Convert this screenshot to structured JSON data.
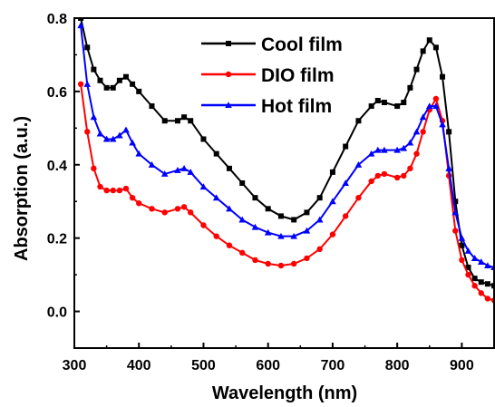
{
  "chart_data": {
    "type": "line",
    "title": "",
    "xlabel": "Wavelength (nm)",
    "ylabel": "Absorption (a.u.)",
    "xlim": [
      300,
      950
    ],
    "ylim": [
      -0.1,
      0.8
    ],
    "x_ticks": [
      300,
      400,
      500,
      600,
      700,
      800,
      900
    ],
    "y_ticks": [
      0.0,
      0.2,
      0.4,
      0.6,
      0.8
    ],
    "x_tick_labels": [
      "300",
      "400",
      "500",
      "600",
      "700",
      "800",
      "900"
    ],
    "y_tick_labels": [
      "0.0",
      "0.2",
      "0.4",
      "0.6",
      "0.8"
    ],
    "grid": false,
    "legend_position": "top-center",
    "series": [
      {
        "name": "Cool film",
        "color": "#000000",
        "marker": "square",
        "points": [
          [
            310,
            0.8
          ],
          [
            320,
            0.72
          ],
          [
            330,
            0.66
          ],
          [
            340,
            0.63
          ],
          [
            350,
            0.61
          ],
          [
            360,
            0.61
          ],
          [
            370,
            0.63
          ],
          [
            380,
            0.64
          ],
          [
            390,
            0.62
          ],
          [
            400,
            0.6
          ],
          [
            420,
            0.56
          ],
          [
            440,
            0.52
          ],
          [
            460,
            0.52
          ],
          [
            470,
            0.53
          ],
          [
            480,
            0.52
          ],
          [
            500,
            0.47
          ],
          [
            520,
            0.43
          ],
          [
            540,
            0.39
          ],
          [
            560,
            0.35
          ],
          [
            580,
            0.31
          ],
          [
            600,
            0.28
          ],
          [
            620,
            0.26
          ],
          [
            640,
            0.25
          ],
          [
            660,
            0.27
          ],
          [
            680,
            0.31
          ],
          [
            700,
            0.38
          ],
          [
            720,
            0.45
          ],
          [
            740,
            0.52
          ],
          [
            760,
            0.56
          ],
          [
            770,
            0.575
          ],
          [
            780,
            0.57
          ],
          [
            800,
            0.56
          ],
          [
            810,
            0.57
          ],
          [
            820,
            0.61
          ],
          [
            830,
            0.66
          ],
          [
            840,
            0.71
          ],
          [
            850,
            0.74
          ],
          [
            860,
            0.72
          ],
          [
            870,
            0.64
          ],
          [
            880,
            0.49
          ],
          [
            890,
            0.3
          ],
          [
            900,
            0.18
          ],
          [
            910,
            0.12
          ],
          [
            920,
            0.09
          ],
          [
            930,
            0.08
          ],
          [
            940,
            0.075
          ],
          [
            950,
            0.07
          ]
        ]
      },
      {
        "name": "DIO film",
        "color": "#ff0000",
        "marker": "circle",
        "points": [
          [
            310,
            0.62
          ],
          [
            320,
            0.49
          ],
          [
            330,
            0.39
          ],
          [
            340,
            0.34
          ],
          [
            350,
            0.33
          ],
          [
            360,
            0.33
          ],
          [
            370,
            0.33
          ],
          [
            380,
            0.335
          ],
          [
            390,
            0.31
          ],
          [
            400,
            0.295
          ],
          [
            420,
            0.28
          ],
          [
            440,
            0.27
          ],
          [
            460,
            0.28
          ],
          [
            470,
            0.285
          ],
          [
            480,
            0.27
          ],
          [
            500,
            0.235
          ],
          [
            520,
            0.205
          ],
          [
            540,
            0.18
          ],
          [
            560,
            0.16
          ],
          [
            580,
            0.14
          ],
          [
            600,
            0.13
          ],
          [
            620,
            0.125
          ],
          [
            640,
            0.13
          ],
          [
            660,
            0.145
          ],
          [
            680,
            0.17
          ],
          [
            700,
            0.21
          ],
          [
            720,
            0.26
          ],
          [
            740,
            0.31
          ],
          [
            760,
            0.355
          ],
          [
            770,
            0.37
          ],
          [
            780,
            0.375
          ],
          [
            800,
            0.365
          ],
          [
            810,
            0.37
          ],
          [
            820,
            0.39
          ],
          [
            830,
            0.43
          ],
          [
            840,
            0.49
          ],
          [
            850,
            0.55
          ],
          [
            860,
            0.58
          ],
          [
            870,
            0.52
          ],
          [
            880,
            0.37
          ],
          [
            890,
            0.22
          ],
          [
            900,
            0.14
          ],
          [
            910,
            0.1
          ],
          [
            920,
            0.07
          ],
          [
            930,
            0.05
          ],
          [
            940,
            0.035
          ],
          [
            950,
            0.03
          ]
        ]
      },
      {
        "name": "Hot film",
        "color": "#0000ff",
        "marker": "triangle",
        "points": [
          [
            310,
            0.78
          ],
          [
            320,
            0.62
          ],
          [
            330,
            0.53
          ],
          [
            340,
            0.485
          ],
          [
            350,
            0.47
          ],
          [
            360,
            0.47
          ],
          [
            370,
            0.48
          ],
          [
            380,
            0.495
          ],
          [
            390,
            0.46
          ],
          [
            400,
            0.43
          ],
          [
            420,
            0.4
          ],
          [
            440,
            0.375
          ],
          [
            460,
            0.385
          ],
          [
            470,
            0.39
          ],
          [
            480,
            0.38
          ],
          [
            500,
            0.34
          ],
          [
            520,
            0.31
          ],
          [
            540,
            0.28
          ],
          [
            560,
            0.25
          ],
          [
            580,
            0.23
          ],
          [
            600,
            0.215
          ],
          [
            620,
            0.205
          ],
          [
            640,
            0.205
          ],
          [
            660,
            0.22
          ],
          [
            680,
            0.25
          ],
          [
            700,
            0.3
          ],
          [
            720,
            0.35
          ],
          [
            740,
            0.4
          ],
          [
            760,
            0.43
          ],
          [
            770,
            0.44
          ],
          [
            780,
            0.44
          ],
          [
            800,
            0.44
          ],
          [
            810,
            0.445
          ],
          [
            820,
            0.46
          ],
          [
            830,
            0.49
          ],
          [
            840,
            0.53
          ],
          [
            850,
            0.56
          ],
          [
            860,
            0.56
          ],
          [
            870,
            0.51
          ],
          [
            880,
            0.39
          ],
          [
            890,
            0.27
          ],
          [
            900,
            0.2
          ],
          [
            910,
            0.165
          ],
          [
            920,
            0.145
          ],
          [
            930,
            0.135
          ],
          [
            940,
            0.125
          ],
          [
            950,
            0.12
          ]
        ]
      }
    ]
  }
}
